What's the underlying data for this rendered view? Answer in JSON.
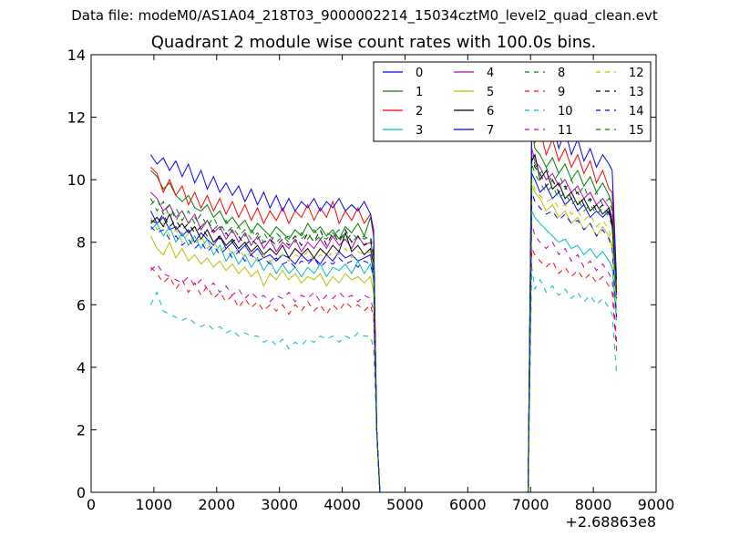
{
  "suptitle": "Data file: modeM0/AS1A04_218T03_9000002214_15034cztM0_level2_quad_clean.evt",
  "chart_data": {
    "type": "line",
    "title": "Quadrant 2 module wise count rates with 100.0s bins.",
    "xlabel": "",
    "ylabel": "",
    "offset_text": "+2.68863e8",
    "xlim": [
      0,
      9000
    ],
    "ylim": [
      0,
      14
    ],
    "xticks": [
      0,
      1000,
      2000,
      3000,
      4000,
      5000,
      6000,
      7000,
      8000,
      9000
    ],
    "yticks": [
      0,
      2,
      4,
      6,
      8,
      10,
      12,
      14
    ],
    "xtick_labels": [
      "0",
      "1000",
      "2000",
      "3000",
      "4000",
      "5000",
      "6000",
      "7000",
      "8000",
      "9000"
    ],
    "ytick_labels": [
      "0",
      "2",
      "4",
      "6",
      "8",
      "10",
      "12",
      "14"
    ],
    "legend_position": "top-right",
    "legend_columns": 4,
    "x": [
      950,
      1050,
      1150,
      1250,
      1350,
      1450,
      1550,
      1650,
      1750,
      1850,
      1950,
      2050,
      2150,
      2250,
      2350,
      2450,
      2550,
      2650,
      2750,
      2850,
      2950,
      3050,
      3150,
      3250,
      3350,
      3450,
      3550,
      3650,
      3750,
      3850,
      3950,
      4050,
      4150,
      4250,
      4350,
      4450,
      4500,
      4550,
      4600,
      5000,
      5500,
      6000,
      6500,
      6960,
      7020,
      7070,
      7150,
      7250,
      7350,
      7450,
      7550,
      7650,
      7750,
      7850,
      7950,
      8050,
      8150,
      8250,
      8300,
      8370
    ],
    "series": [
      {
        "name": "0",
        "color": "#0000ff",
        "dash": "solid",
        "values": [
          9.0,
          8.6,
          8.8,
          8.4,
          8.5,
          8.2,
          8.4,
          8.0,
          8.3,
          8.1,
          7.9,
          8.2,
          7.8,
          8.0,
          7.7,
          7.9,
          7.6,
          7.8,
          7.5,
          7.6,
          7.4,
          7.6,
          7.5,
          7.3,
          7.6,
          7.4,
          7.5,
          7.3,
          7.6,
          7.4,
          7.7,
          7.5,
          7.6,
          7.4,
          7.5,
          7.6,
          7.0,
          2.0,
          0,
          0,
          0,
          0,
          0,
          0,
          10.2,
          10.0,
          9.6,
          9.8,
          9.4,
          9.6,
          9.2,
          9.4,
          9.0,
          9.2,
          8.8,
          9.0,
          8.8,
          9.0,
          8.5,
          6.5
        ]
      },
      {
        "name": "1",
        "color": "#008000",
        "dash": "solid",
        "values": [
          10.3,
          10.1,
          9.7,
          9.9,
          9.5,
          9.3,
          9.5,
          9.1,
          9.0,
          9.2,
          8.8,
          9.0,
          8.6,
          8.8,
          8.5,
          8.7,
          8.3,
          8.6,
          8.4,
          8.2,
          8.5,
          8.3,
          8.1,
          8.4,
          8.2,
          8.6,
          8.3,
          8.5,
          8.2,
          8.4,
          8.1,
          8.5,
          8.3,
          8.6,
          8.2,
          8.8,
          8.2,
          2.0,
          0,
          0,
          0,
          0,
          0,
          0,
          11.6,
          11.0,
          10.8,
          10.4,
          10.7,
          10.2,
          10.5,
          10.0,
          10.3,
          9.8,
          10.1,
          9.6,
          9.9,
          9.5,
          9.2,
          6.5
        ]
      },
      {
        "name": "2",
        "color": "#ff0000",
        "dash": "solid",
        "values": [
          10.4,
          10.2,
          9.6,
          10.0,
          9.5,
          9.8,
          9.2,
          9.6,
          9.1,
          9.5,
          9.0,
          9.4,
          8.9,
          9.3,
          8.8,
          9.2,
          8.7,
          9.1,
          8.6,
          9.0,
          8.7,
          9.1,
          8.6,
          9.0,
          8.8,
          9.2,
          8.7,
          9.1,
          8.8,
          9.3,
          8.6,
          9.0,
          8.7,
          9.1,
          8.6,
          8.9,
          8.2,
          2.0,
          0,
          0,
          0,
          0,
          0,
          0,
          11.8,
          11.2,
          11.6,
          10.8,
          11.3,
          10.6,
          11.0,
          10.4,
          10.8,
          10.2,
          10.6,
          9.9,
          10.3,
          9.7,
          9.6,
          6.5
        ]
      },
      {
        "name": "3",
        "color": "#00bfbf",
        "dash": "solid",
        "values": [
          8.4,
          8.6,
          8.2,
          8.5,
          8.0,
          8.3,
          7.9,
          8.2,
          7.8,
          8.1,
          7.6,
          7.9,
          7.4,
          7.7,
          7.3,
          7.6,
          7.2,
          7.5,
          7.1,
          7.4,
          7.0,
          7.3,
          7.0,
          7.2,
          6.9,
          7.2,
          7.0,
          7.3,
          6.9,
          7.2,
          7.1,
          7.3,
          7.0,
          7.4,
          7.0,
          7.3,
          6.8,
          2.0,
          0,
          0,
          0,
          0,
          0,
          0,
          9.0,
          8.8,
          8.6,
          8.4,
          8.2,
          8.0,
          8.1,
          7.8,
          7.9,
          7.6,
          7.8,
          7.5,
          7.7,
          7.4,
          7.2,
          5.5
        ]
      },
      {
        "name": "4",
        "color": "#bf00bf",
        "dash": "solid",
        "values": [
          9.6,
          9.4,
          9.0,
          9.2,
          8.8,
          9.0,
          8.6,
          8.9,
          8.4,
          8.7,
          8.3,
          8.5,
          8.1,
          8.4,
          8.0,
          8.3,
          7.9,
          8.2,
          7.8,
          8.1,
          7.7,
          8.0,
          7.8,
          8.1,
          7.7,
          8.0,
          7.8,
          8.1,
          7.8,
          8.2,
          7.9,
          8.1,
          7.8,
          8.2,
          7.9,
          8.0,
          7.5,
          2.0,
          0,
          0,
          0,
          0,
          0,
          0,
          11.0,
          10.6,
          10.4,
          10.0,
          10.2,
          9.8,
          10.0,
          9.6,
          9.8,
          9.4,
          9.6,
          9.2,
          9.4,
          9.1,
          8.8,
          6.3
        ]
      },
      {
        "name": "5",
        "color": "#bfbf00",
        "dash": "solid",
        "values": [
          8.2,
          7.8,
          7.6,
          8.0,
          7.5,
          7.8,
          7.4,
          7.6,
          7.3,
          7.5,
          7.2,
          7.4,
          7.1,
          7.3,
          7.0,
          7.2,
          6.9,
          7.1,
          6.6,
          7.0,
          6.8,
          7.1,
          6.8,
          7.0,
          6.7,
          6.9,
          6.8,
          7.0,
          6.6,
          6.9,
          6.7,
          7.0,
          6.8,
          6.9,
          6.7,
          6.9,
          6.4,
          2.0,
          0,
          0,
          0,
          0,
          0,
          0,
          9.8,
          9.6,
          9.4,
          9.0,
          9.2,
          8.8,
          9.0,
          8.6,
          8.8,
          8.4,
          8.6,
          8.2,
          8.5,
          8.2,
          7.8,
          5.8
        ]
      },
      {
        "name": "6",
        "color": "#000000",
        "dash": "solid",
        "values": [
          8.6,
          8.8,
          8.5,
          8.9,
          8.4,
          8.6,
          8.3,
          8.5,
          8.1,
          8.4,
          8.0,
          8.2,
          7.9,
          8.1,
          7.8,
          8.0,
          7.7,
          7.9,
          7.6,
          7.8,
          7.6,
          7.9,
          7.5,
          7.8,
          7.6,
          7.8,
          7.5,
          7.8,
          7.6,
          7.9,
          7.7,
          8.3,
          7.7,
          7.9,
          7.6,
          7.8,
          7.3,
          2.0,
          0,
          0,
          0,
          0,
          0,
          0,
          10.6,
          10.8,
          10.0,
          10.3,
          9.7,
          9.9,
          9.4,
          9.6,
          9.2,
          9.4,
          9.0,
          9.2,
          8.9,
          9.1,
          8.6,
          6.4
        ]
      },
      {
        "name": "7",
        "color": "#0000ff",
        "dash": "solid",
        "values": [
          10.8,
          10.5,
          10.7,
          10.3,
          10.6,
          10.1,
          10.5,
          9.9,
          10.3,
          9.7,
          10.1,
          9.6,
          9.9,
          9.5,
          9.8,
          9.3,
          9.7,
          9.2,
          9.6,
          9.1,
          9.5,
          9.0,
          9.4,
          9.0,
          9.3,
          9.1,
          9.4,
          9.0,
          9.3,
          9.1,
          9.4,
          9.0,
          9.2,
          9.0,
          9.3,
          8.9,
          8.4,
          2.0,
          0,
          0,
          0,
          0,
          0,
          0,
          12.0,
          11.9,
          12.0,
          11.5,
          11.8,
          11.0,
          11.6,
          10.8,
          11.3,
          10.6,
          11.0,
          10.4,
          10.8,
          10.5,
          10.3,
          6.8
        ]
      },
      {
        "name": "8",
        "color": "#008000",
        "dash": "dashed",
        "values": [
          9.4,
          9.0,
          9.3,
          8.8,
          9.1,
          8.7,
          9.0,
          8.6,
          8.9,
          8.5,
          8.8,
          8.4,
          8.7,
          8.3,
          8.5,
          8.2,
          8.4,
          8.1,
          8.3,
          8.0,
          8.3,
          8.1,
          8.2,
          8.0,
          8.3,
          8.1,
          8.4,
          8.1,
          8.3,
          8.2,
          8.4,
          8.0,
          8.3,
          8.1,
          8.2,
          8.0,
          7.6,
          2.0,
          0,
          0,
          0,
          0,
          0,
          0,
          10.8,
          10.5,
          10.2,
          10.4,
          9.9,
          10.2,
          9.7,
          10.0,
          9.5,
          9.8,
          9.3,
          9.6,
          9.2,
          9.4,
          9.0,
          6.5
        ]
      },
      {
        "name": "9",
        "color": "#ff0000",
        "dash": "dashed",
        "values": [
          7.2,
          7.0,
          6.7,
          6.9,
          6.5,
          6.8,
          6.4,
          6.7,
          6.3,
          6.6,
          6.2,
          6.4,
          6.1,
          6.3,
          5.9,
          6.2,
          5.9,
          6.1,
          5.8,
          6.0,
          5.8,
          6.0,
          5.7,
          6.0,
          5.8,
          6.1,
          5.8,
          6.0,
          5.7,
          6.0,
          5.8,
          6.1,
          5.9,
          6.0,
          5.8,
          6.0,
          5.6,
          2.0,
          0,
          0,
          0,
          0,
          0,
          0,
          7.8,
          7.6,
          7.4,
          7.2,
          7.4,
          7.0,
          7.2,
          6.9,
          7.1,
          6.8,
          7.0,
          6.7,
          6.9,
          6.6,
          6.4,
          4.5
        ]
      },
      {
        "name": "10",
        "color": "#00bfbf",
        "dash": "dashed",
        "values": [
          6.0,
          6.4,
          5.8,
          5.7,
          5.6,
          5.5,
          5.6,
          5.4,
          5.3,
          5.4,
          5.2,
          5.3,
          5.1,
          5.2,
          5.0,
          5.1,
          5.0,
          5.0,
          4.8,
          4.9,
          4.7,
          4.9,
          4.6,
          4.8,
          4.7,
          4.9,
          4.8,
          5.0,
          4.9,
          5.0,
          4.8,
          5.0,
          4.9,
          5.1,
          5.0,
          5.0,
          4.6,
          2.0,
          0,
          0,
          0,
          0,
          0,
          0,
          7.2,
          6.5,
          6.8,
          6.4,
          6.6,
          6.3,
          6.5,
          6.2,
          6.4,
          6.1,
          6.3,
          6.0,
          6.2,
          5.9,
          5.7,
          3.8
        ]
      },
      {
        "name": "11",
        "color": "#bf00bf",
        "dash": "dashed",
        "values": [
          7.1,
          7.3,
          7.0,
          6.9,
          6.8,
          6.7,
          6.9,
          6.6,
          6.8,
          6.5,
          6.7,
          6.4,
          6.6,
          6.3,
          6.5,
          6.2,
          6.4,
          6.2,
          6.3,
          6.1,
          6.3,
          6.2,
          6.4,
          6.1,
          6.3,
          6.2,
          6.4,
          6.1,
          6.3,
          6.2,
          6.4,
          6.2,
          6.3,
          6.1,
          6.3,
          6.2,
          5.8,
          2.0,
          0,
          0,
          0,
          0,
          0,
          0,
          8.6,
          8.2,
          8.0,
          7.8,
          8.0,
          7.6,
          7.8,
          7.4,
          7.6,
          7.2,
          7.4,
          7.1,
          7.3,
          7.0,
          6.8,
          4.8
        ]
      },
      {
        "name": "12",
        "color": "#bfbf00",
        "dash": "dashed",
        "values": [
          8.8,
          8.4,
          8.6,
          8.2,
          8.4,
          8.0,
          8.3,
          7.9,
          8.2,
          7.8,
          8.0,
          7.7,
          7.9,
          7.6,
          7.8,
          7.5,
          7.7,
          7.4,
          7.6,
          7.4,
          7.5,
          7.6,
          7.4,
          7.6,
          7.5,
          7.7,
          7.4,
          7.6,
          7.5,
          7.7,
          7.6,
          7.8,
          7.5,
          7.7,
          7.6,
          7.7,
          7.2,
          2.0,
          0,
          0,
          0,
          0,
          0,
          0,
          10.0,
          9.7,
          9.5,
          9.3,
          9.4,
          9.1,
          9.2,
          8.9,
          9.0,
          8.7,
          8.9,
          8.5,
          8.7,
          8.4,
          8.0,
          6.0
        ]
      },
      {
        "name": "13",
        "color": "#000000",
        "dash": "dashed",
        "values": [
          8.7,
          8.6,
          8.9,
          8.5,
          8.7,
          8.4,
          8.6,
          8.3,
          8.5,
          8.2,
          8.4,
          8.1,
          8.3,
          8.0,
          8.2,
          7.9,
          8.1,
          7.9,
          8.0,
          8.1,
          7.9,
          8.1,
          7.9,
          8.2,
          7.9,
          8.3,
          8.0,
          8.4,
          7.9,
          8.3,
          8.0,
          8.4,
          8.0,
          8.2,
          7.9,
          8.1,
          7.6,
          2.0,
          0,
          0,
          0,
          0,
          0,
          0,
          10.7,
          10.4,
          10.2,
          9.8,
          10.0,
          9.6,
          9.8,
          9.4,
          9.6,
          9.2,
          9.4,
          9.0,
          9.2,
          8.9,
          8.6,
          6.2
        ]
      },
      {
        "name": "14",
        "color": "#0000ff",
        "dash": "dashed",
        "values": [
          8.5,
          8.3,
          8.4,
          8.1,
          8.2,
          7.9,
          8.1,
          7.8,
          8.0,
          7.7,
          7.9,
          7.6,
          7.8,
          7.5,
          7.7,
          7.4,
          7.6,
          7.4,
          7.5,
          7.3,
          7.5,
          7.3,
          7.4,
          7.2,
          7.4,
          7.3,
          7.5,
          7.2,
          7.4,
          7.3,
          7.5,
          7.3,
          7.4,
          7.2,
          7.4,
          7.3,
          6.9,
          2.0,
          0,
          0,
          0,
          0,
          0,
          0,
          9.6,
          9.3,
          9.1,
          8.9,
          9.0,
          8.7,
          8.9,
          8.6,
          8.7,
          8.4,
          8.6,
          8.2,
          8.4,
          8.1,
          7.8,
          5.6
        ]
      },
      {
        "name": "15",
        "color": "#008000",
        "dash": "dashed",
        "values": [
          9.2,
          9.4,
          8.9,
          9.2,
          8.7,
          9.0,
          8.6,
          8.8,
          8.5,
          8.7,
          8.4,
          8.6,
          8.3,
          8.5,
          8.2,
          8.4,
          8.1,
          8.3,
          8.0,
          8.2,
          8.0,
          8.2,
          8.0,
          8.2,
          8.1,
          8.3,
          8.0,
          8.2,
          8.1,
          8.3,
          8.1,
          8.3,
          8.0,
          8.2,
          8.1,
          8.2,
          7.7,
          2.0,
          0,
          0,
          0,
          0,
          0,
          0,
          10.5,
          10.2,
          9.9,
          9.6,
          9.8,
          9.4,
          9.6,
          9.2,
          9.4,
          9.0,
          9.2,
          8.9,
          9.1,
          8.8,
          8.5,
          6.2
        ]
      }
    ]
  }
}
